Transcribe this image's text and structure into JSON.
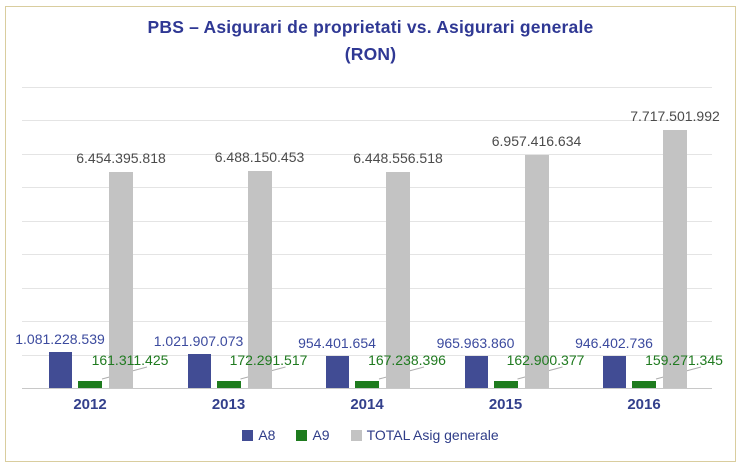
{
  "title": {
    "line1": "PBS – Asigurari de proprietati vs. Asigurari generale",
    "line2": "(RON)",
    "color": "#2F3894"
  },
  "frame": {
    "border_color": "#D9CD9E",
    "background": "#FFFFFF"
  },
  "chart_data": {
    "type": "bar",
    "title": "PBS – Asigurari de proprietati vs. Asigurari generale (RON)",
    "categories": [
      "2012",
      "2013",
      "2014",
      "2015",
      "2016"
    ],
    "series": [
      {
        "name": "A8",
        "color": "#414C94",
        "label_color": "#3B4A9E",
        "values": [
          1081228539,
          1021907073,
          954401654,
          965963860,
          946402736
        ],
        "labels": [
          "1.081.228.539",
          "1.021.907.073",
          "954.401.654",
          "965.963.860",
          "946.402.736"
        ]
      },
      {
        "name": "A9",
        "color": "#1E7B1E",
        "label_color": "#1F7A1F",
        "values": [
          161311425,
          172291517,
          167238396,
          162900377,
          159271345
        ],
        "labels": [
          "161.311.425",
          "172.291.517",
          "167.238.396",
          "162.900.377",
          "159.271.345"
        ]
      },
      {
        "name": "TOTAL Asig generale",
        "color": "#C3C3C3",
        "label_color": "#4B4B4B",
        "values": [
          6454395818,
          6488150453,
          6448556518,
          6957416634,
          7717501992
        ],
        "labels": [
          "6.454.395.818",
          "6.488.150.453",
          "6.448.556.518",
          "6.957.416.634",
          "7.717.501.992"
        ]
      }
    ],
    "xlabel": "",
    "ylabel": "",
    "ylim": [
      0,
      9000000000
    ],
    "gridline_interval": 1000000000,
    "grid": true,
    "legend_position": "bottom",
    "gridline_color": "#E4E4E4",
    "axis_color": "#C8C8C8",
    "leader_line_color": "#ADADAD"
  },
  "legend": {
    "items": [
      {
        "label": "A8",
        "color": "#414C94"
      },
      {
        "label": "A9",
        "color": "#1E7B1E"
      },
      {
        "label": "TOTAL Asig generale",
        "color": "#C3C3C3"
      }
    ]
  }
}
